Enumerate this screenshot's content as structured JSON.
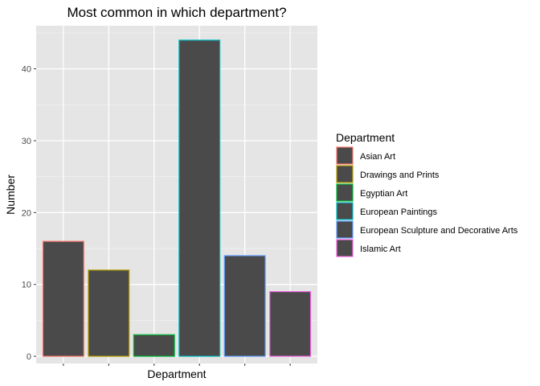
{
  "chart_data": {
    "type": "bar",
    "title": "Most common in which department?",
    "xlabel": "Department",
    "ylabel": "Number",
    "ylim": [
      -1,
      46
    ],
    "yticks": [
      0,
      10,
      20,
      30,
      40
    ],
    "grid": true,
    "legend_position": "right",
    "legend_title": "Department",
    "bar_fill": "#4a4a4a",
    "panel_background": "#e5e5e5",
    "categories": [
      "Asian Art",
      "Drawings and Prints",
      "Egyptian Art",
      "European Paintings",
      "European Sculpture and Decorative Arts",
      "Islamic Art"
    ],
    "values": [
      16,
      12,
      3,
      44,
      14,
      9
    ],
    "colors": [
      "#F8766D",
      "#B79F00",
      "#00BA38",
      "#00BFC4",
      "#619CFF",
      "#F564E3"
    ]
  }
}
